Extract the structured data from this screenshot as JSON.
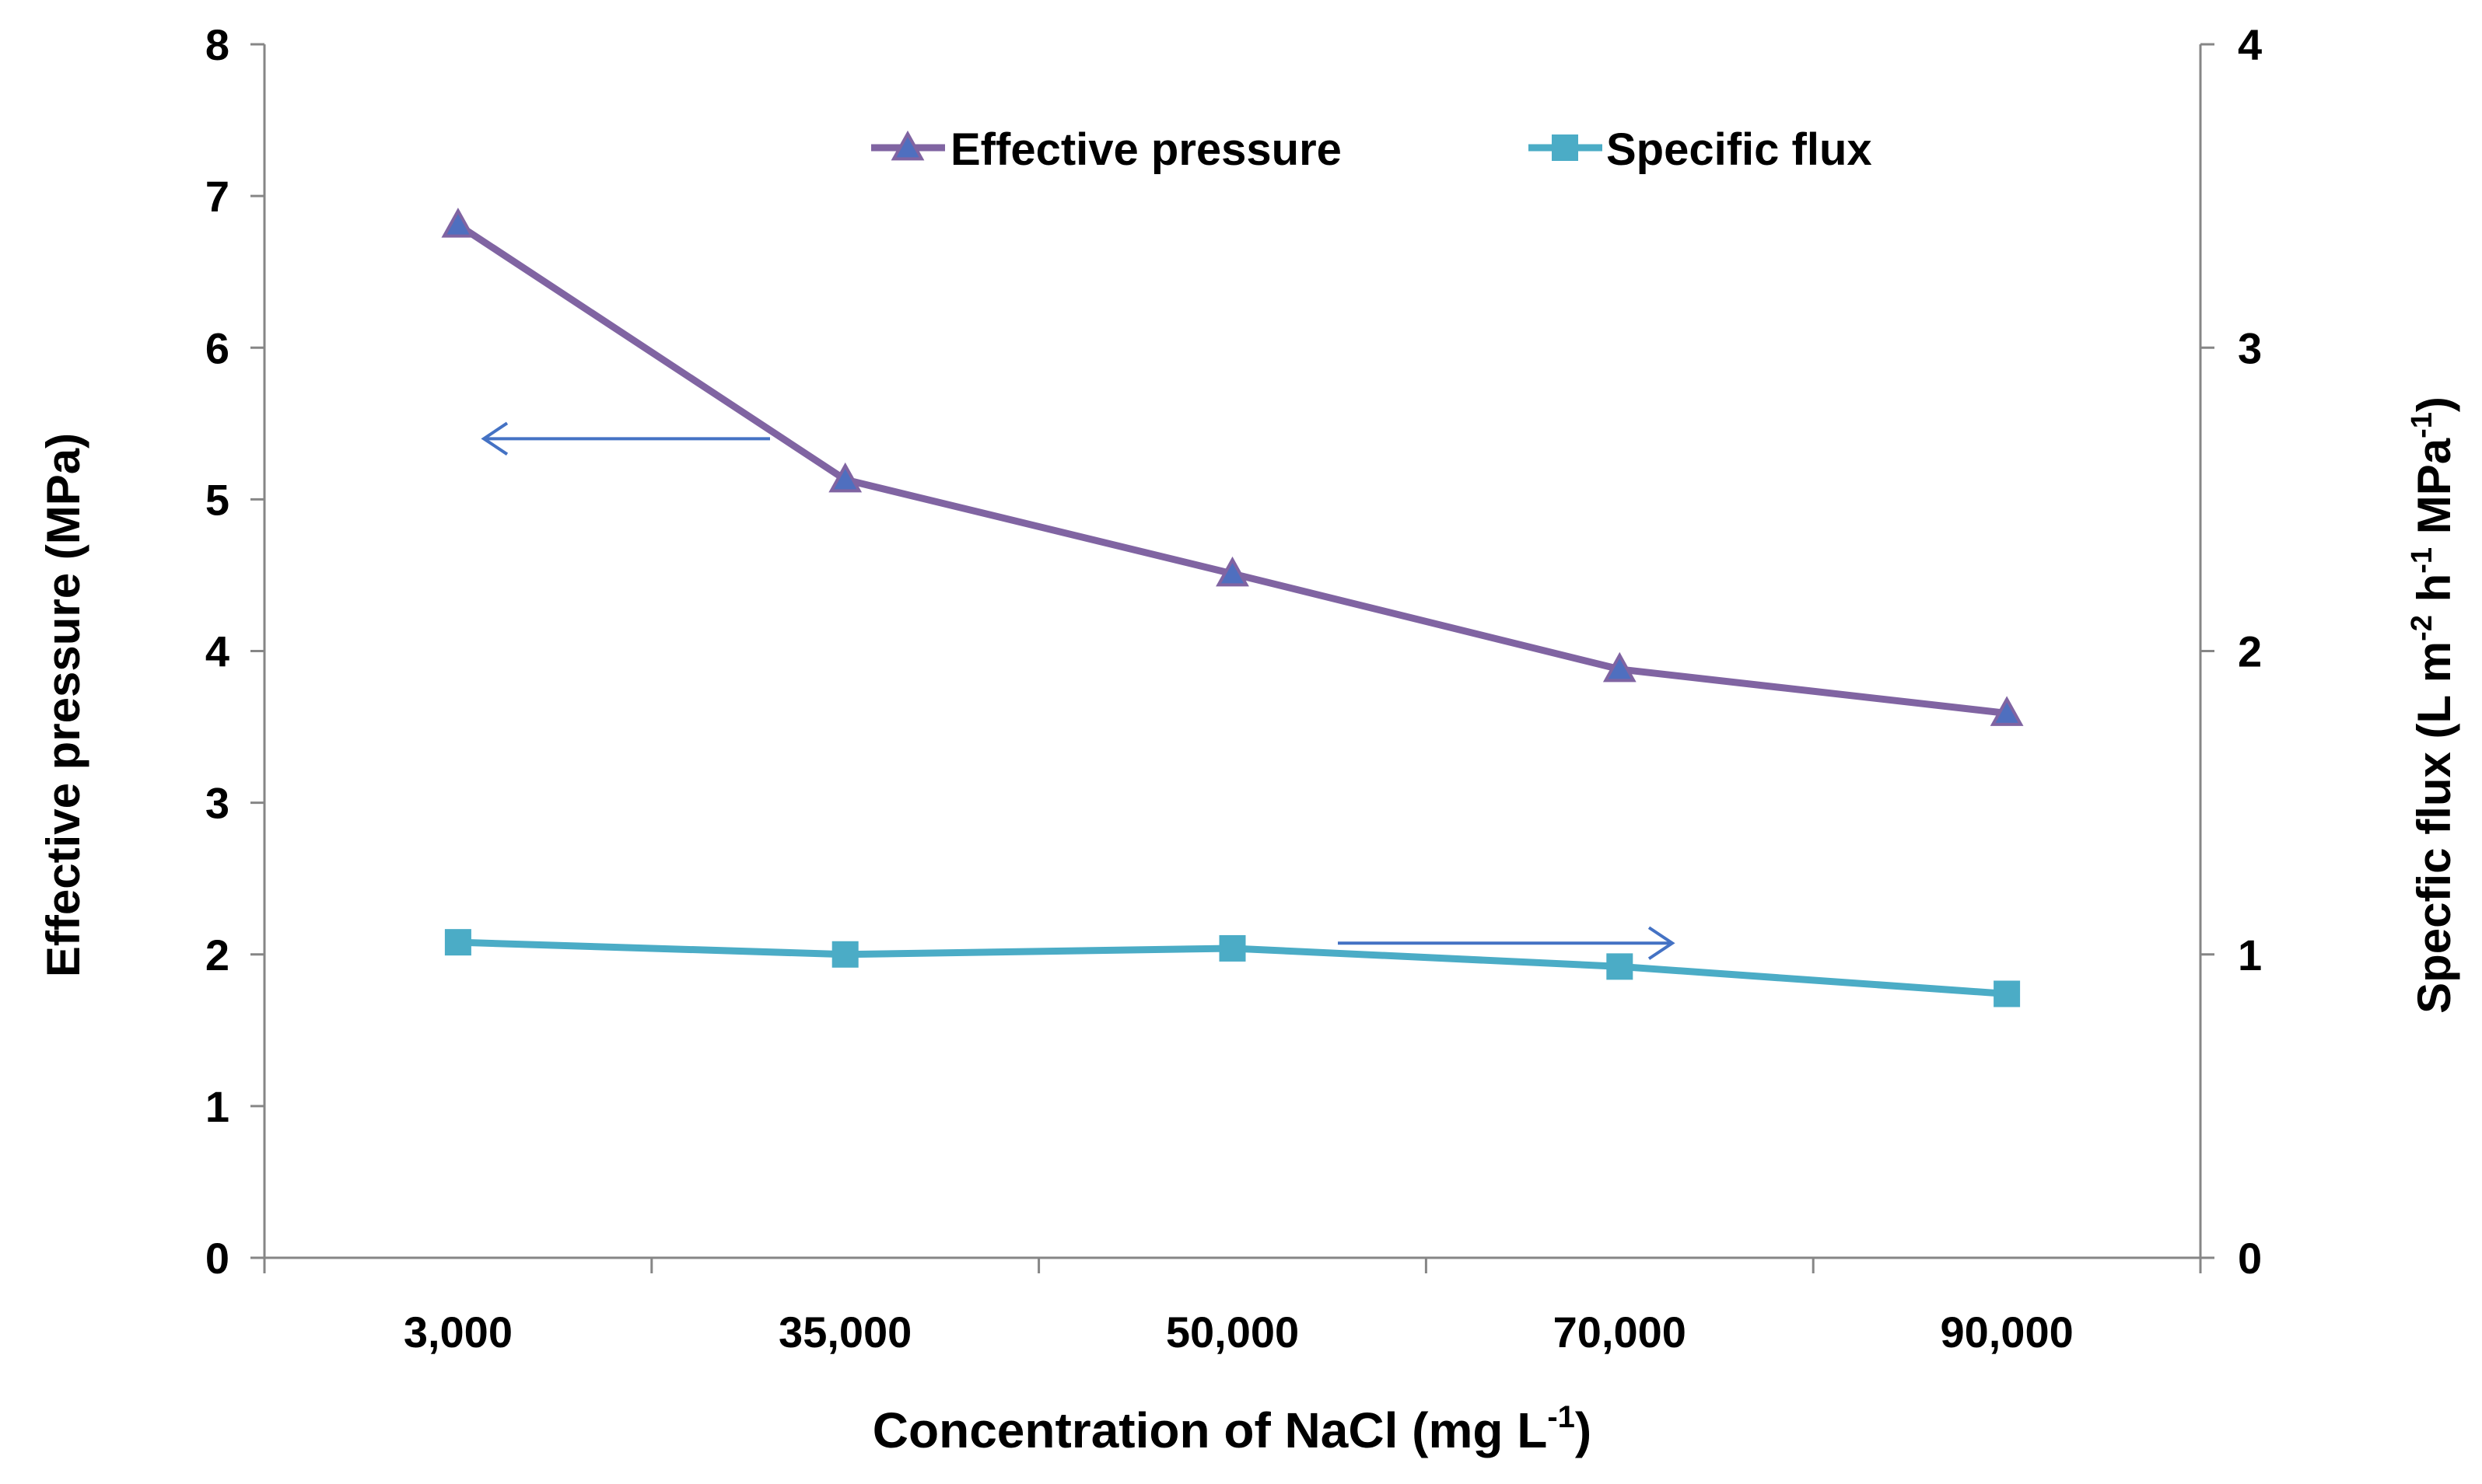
{
  "chart_data": {
    "type": "line",
    "categories": [
      "3,000",
      "35,000",
      "50,000",
      "70,000",
      "90,000"
    ],
    "xlabel": "Concentration of NaCl (mg L",
    "xlabel_sup": "-1",
    "xlabel_end": ")",
    "ylabel_left": "Effective pressure (MPa)",
    "ylabel_right": [
      "Specfic flux (L m",
      "-2",
      " h",
      "-1",
      " MPa",
      "-1",
      ")"
    ],
    "ylim_left": [
      0,
      8
    ],
    "ylim_right": [
      0,
      4
    ],
    "yticks_left": [
      "0",
      "1",
      "2",
      "3",
      "4",
      "5",
      "6",
      "7",
      "8"
    ],
    "yticks_right": [
      "0",
      "1",
      "2",
      "3",
      "4"
    ],
    "legend_position": "top-center",
    "series": [
      {
        "name": "Effective pressure",
        "axis": "left",
        "marker": "triangle",
        "color": "#8064A2",
        "marker_color": "#4F6FBF",
        "values": [
          6.81,
          5.13,
          4.51,
          3.88,
          3.59
        ]
      },
      {
        "name": "Specific flux",
        "axis": "right",
        "marker": "square",
        "color": "#4BACC6",
        "values": [
          1.04,
          1.0,
          1.02,
          0.96,
          0.87
        ]
      }
    ],
    "annotation_arrows": [
      {
        "direction": "left",
        "points_to": "left axis",
        "at_left_value": 5.4
      },
      {
        "direction": "right",
        "points_to": "right axis",
        "at_right_value": 1.05
      }
    ],
    "arrow_color": "#4472C4",
    "axis_color": "#868686"
  }
}
